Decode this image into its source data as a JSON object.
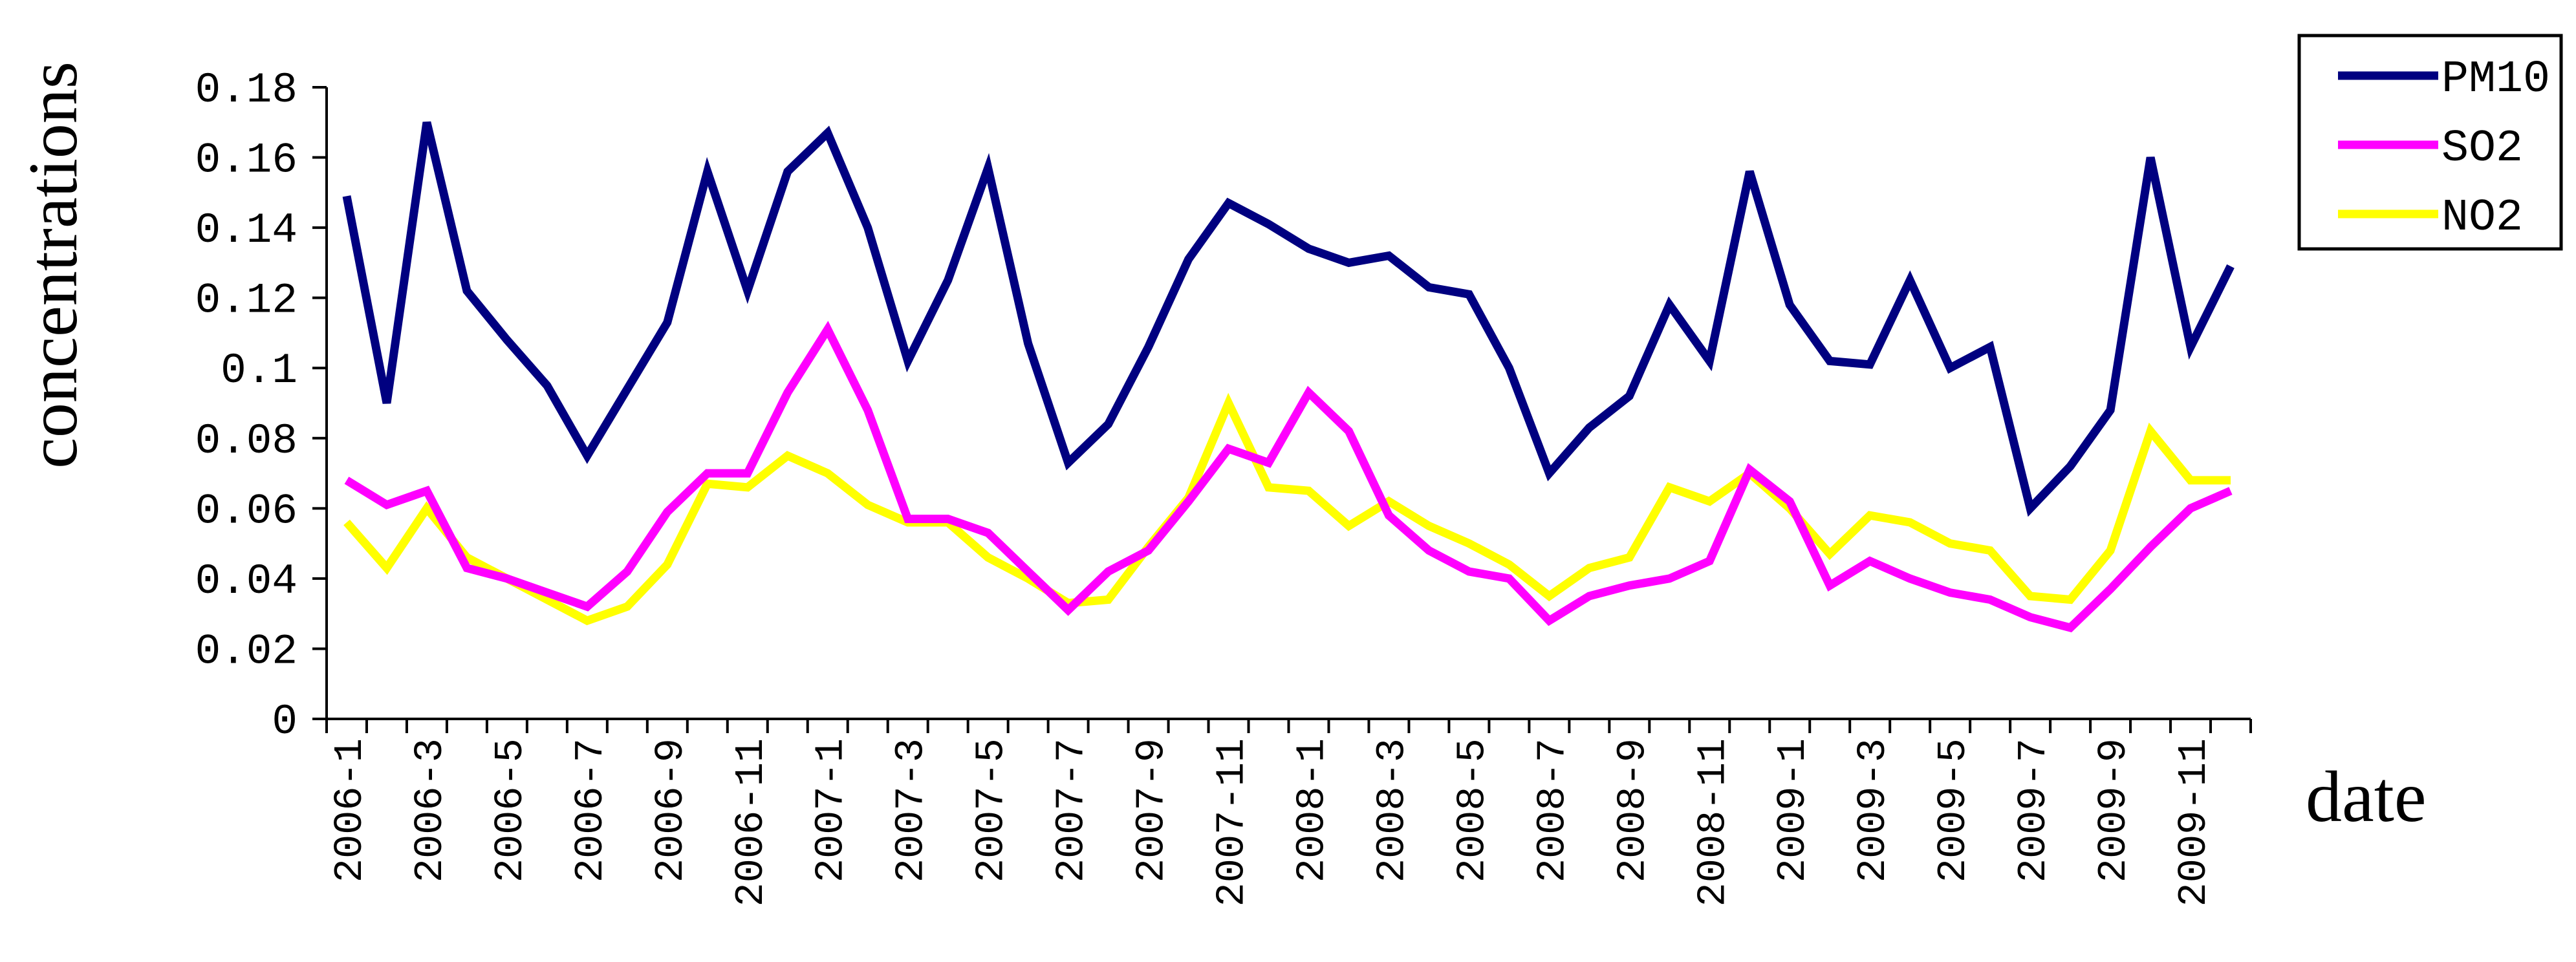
{
  "chart_data": {
    "type": "line",
    "title": "",
    "xlabel": "date",
    "ylabel": "concentrations",
    "ylim": [
      0,
      0.18
    ],
    "yticks": [
      "0",
      "0.02",
      "0.04",
      "0.06",
      "0.08",
      "0.1",
      "0.12",
      "0.14",
      "0.16",
      "0.18"
    ],
    "grid": false,
    "legend_position": "top-right",
    "x": [
      "2006-1",
      "2006-2",
      "2006-3",
      "2006-4",
      "2006-5",
      "2006-6",
      "2006-7",
      "2006-8",
      "2006-9",
      "2006-10",
      "2006-11",
      "2006-12",
      "2007-1",
      "2007-2",
      "2007-3",
      "2007-4",
      "2007-5",
      "2007-6",
      "2007-7",
      "2007-8",
      "2007-9",
      "2007-10",
      "2007-11",
      "2007-12",
      "2008-1",
      "2008-2",
      "2008-3",
      "2008-4",
      "2008-5",
      "2008-6",
      "2008-7",
      "2008-8",
      "2008-9",
      "2008-10",
      "2008-11",
      "2008-12",
      "2009-1",
      "2009-2",
      "2009-3",
      "2009-4",
      "2009-5",
      "2009-6",
      "2009-7",
      "2009-8",
      "2009-9",
      "2009-10",
      "2009-11",
      "2009-12"
    ],
    "x_tick_labels": [
      "2006-1",
      "2006-3",
      "2006-5",
      "2006-7",
      "2006-9",
      "2006-11",
      "2007-1",
      "2007-3",
      "2007-5",
      "2007-7",
      "2007-9",
      "2007-11",
      "2008-1",
      "2008-3",
      "2008-5",
      "2008-7",
      "2008-9",
      "2008-11",
      "2009-1",
      "2009-3",
      "2009-5",
      "2009-7",
      "2009-9",
      "2009-11"
    ],
    "series": [
      {
        "name": "PM10",
        "color": "#000080",
        "values": [
          0.149,
          0.09,
          0.17,
          0.122,
          0.108,
          0.095,
          0.075,
          0.094,
          0.113,
          0.156,
          0.122,
          0.156,
          0.167,
          0.14,
          0.102,
          0.125,
          0.157,
          0.107,
          0.073,
          0.084,
          0.106,
          0.131,
          0.147,
          0.141,
          0.134,
          0.13,
          0.132,
          0.123,
          0.121,
          0.1,
          0.07,
          0.083,
          0.092,
          0.118,
          0.102,
          0.156,
          0.118,
          0.102,
          0.101,
          0.125,
          0.1,
          0.106,
          0.06,
          0.072,
          0.088,
          0.16,
          0.106,
          0.129
        ]
      },
      {
        "name": "SO2",
        "color": "#FF00FF",
        "values": [
          0.068,
          0.061,
          0.065,
          0.043,
          0.04,
          0.036,
          0.032,
          0.042,
          0.059,
          0.07,
          0.07,
          0.093,
          0.111,
          0.088,
          0.057,
          0.057,
          0.053,
          0.042,
          0.031,
          0.042,
          0.048,
          0.062,
          0.077,
          0.073,
          0.093,
          0.082,
          0.058,
          0.048,
          0.042,
          0.04,
          0.028,
          0.035,
          0.038,
          0.04,
          0.045,
          0.071,
          0.062,
          0.038,
          0.045,
          0.04,
          0.036,
          0.034,
          0.029,
          0.026,
          0.037,
          0.049,
          0.06,
          0.065
        ]
      },
      {
        "name": "NO2",
        "color": "#FFFF00",
        "values": [
          0.056,
          0.043,
          0.06,
          0.046,
          0.04,
          0.034,
          0.028,
          0.032,
          0.044,
          0.067,
          0.066,
          0.075,
          0.07,
          0.061,
          0.056,
          0.056,
          0.046,
          0.04,
          0.033,
          0.034,
          0.049,
          0.063,
          0.09,
          0.066,
          0.065,
          0.055,
          0.062,
          0.055,
          0.05,
          0.044,
          0.035,
          0.043,
          0.046,
          0.066,
          0.062,
          0.07,
          0.06,
          0.047,
          0.058,
          0.056,
          0.05,
          0.048,
          0.035,
          0.034,
          0.048,
          0.082,
          0.068,
          0.068
        ]
      }
    ]
  }
}
